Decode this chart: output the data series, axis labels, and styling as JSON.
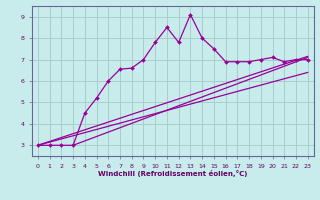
{
  "xlabel": "Windchill (Refroidissement éolien,°C)",
  "bg_color": "#c8ecec",
  "line_color": "#990099",
  "grid_color": "#aacccc",
  "axis_color": "#660066",
  "spine_color": "#666699",
  "xlim": [
    -0.5,
    23.5
  ],
  "ylim": [
    2.5,
    9.5
  ],
  "xticks": [
    0,
    1,
    2,
    3,
    4,
    5,
    6,
    7,
    8,
    9,
    10,
    11,
    12,
    13,
    14,
    15,
    16,
    17,
    18,
    19,
    20,
    21,
    22,
    23
  ],
  "yticks": [
    3,
    4,
    5,
    6,
    7,
    8,
    9
  ],
  "jagged_x": [
    0,
    1,
    2,
    3,
    4,
    5,
    6,
    7,
    8,
    9,
    10,
    11,
    12,
    13,
    14,
    15,
    16,
    17,
    18,
    19,
    20,
    21,
    22,
    23
  ],
  "jagged_y": [
    3.0,
    3.0,
    3.0,
    3.0,
    4.5,
    5.2,
    6.0,
    6.55,
    6.6,
    7.0,
    7.8,
    8.5,
    7.8,
    9.1,
    8.0,
    7.5,
    6.9,
    6.9,
    6.9,
    7.0,
    7.1,
    6.9,
    7.0,
    7.0
  ],
  "line1_x": [
    0,
    23
  ],
  "line1_y": [
    3.0,
    6.4
  ],
  "line2_x": [
    0,
    23
  ],
  "line2_y": [
    3.0,
    7.15
  ],
  "line3_x": [
    3,
    23
  ],
  "line3_y": [
    3.0,
    7.1
  ]
}
